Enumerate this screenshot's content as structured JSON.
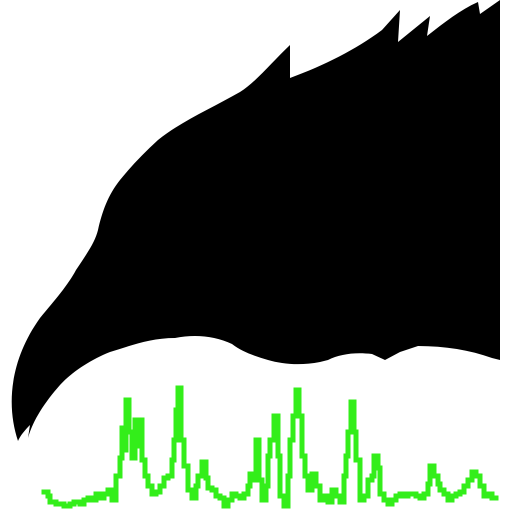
{
  "colors": {
    "background": "#ffffff",
    "silhouette": "#000000",
    "waveform": "#33ee1a"
  },
  "icons": {
    "silhouette": "raven-head-icon",
    "waveform": "audio-waveform-icon"
  }
}
